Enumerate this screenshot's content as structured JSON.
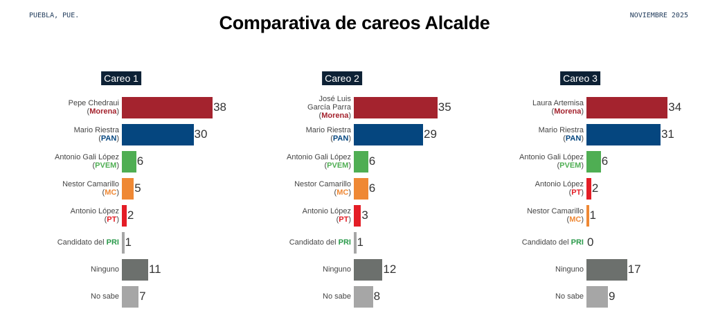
{
  "header": {
    "location": "PUEBLA, PUE.",
    "date": "NOVIEMBRE 2025",
    "title": "Comparativa de careos  Alcalde"
  },
  "party_colors": {
    "Morena": "#a4232e",
    "PAN": "#05467f",
    "PVEM": "#4fae53",
    "MC": "#ef8834",
    "PT": "#e41d26",
    "PRI": "#2a9a4a",
    "none": "#6c706d",
    "unknown": "#a6a6a6"
  },
  "chart_data": [
    {
      "type": "bar",
      "orientation": "horizontal",
      "title": "Careo 1",
      "unit": "%",
      "rows": [
        {
          "name": "Pepe Chedraui",
          "party": "Morena",
          "value": 38
        },
        {
          "name": "Mario Riestra",
          "party": "PAN",
          "value": 30
        },
        {
          "name": "Antonio Gali López",
          "party": "PVEM",
          "value": 6
        },
        {
          "name": "Nestor Camarillo",
          "party": "MC",
          "value": 5
        },
        {
          "name": "Antonio López",
          "party": "PT",
          "value": 2
        },
        {
          "name": "Candidato del",
          "party": "PRI",
          "value": 1,
          "inline": true
        },
        {
          "name": "Ninguno",
          "party": "none",
          "value": 11
        },
        {
          "name": "No sabe",
          "party": "unknown",
          "value": 7
        }
      ]
    },
    {
      "type": "bar",
      "orientation": "horizontal",
      "title": "Careo 2",
      "unit": "%",
      "rows": [
        {
          "name": "José Luis\nGarcía Parra",
          "party": "Morena",
          "value": 35
        },
        {
          "name": "Mario Riestra",
          "party": "PAN",
          "value": 29
        },
        {
          "name": "Antonio Gali López",
          "party": "PVEM",
          "value": 6
        },
        {
          "name": "Nestor Camarillo",
          "party": "MC",
          "value": 6
        },
        {
          "name": "Antonio López",
          "party": "PT",
          "value": 3
        },
        {
          "name": "Candidato del",
          "party": "PRI",
          "value": 1,
          "inline": true
        },
        {
          "name": "Ninguno",
          "party": "none",
          "value": 12
        },
        {
          "name": "No sabe",
          "party": "unknown",
          "value": 8
        }
      ]
    },
    {
      "type": "bar",
      "orientation": "horizontal",
      "title": "Careo 3",
      "unit": "%",
      "rows": [
        {
          "name": "Laura Artemisa",
          "party": "Morena",
          "value": 34
        },
        {
          "name": "Mario Riestra",
          "party": "PAN",
          "value": 31
        },
        {
          "name": "Antonio Gali López",
          "party": "PVEM",
          "value": 6
        },
        {
          "name": "Antonio López",
          "party": "PT",
          "value": 2
        },
        {
          "name": "Nestor Camarillo",
          "party": "MC",
          "value": 1
        },
        {
          "name": "Candidato del",
          "party": "PRI",
          "value": 0,
          "inline": true
        },
        {
          "name": "Ninguno",
          "party": "none",
          "value": 17
        },
        {
          "name": "No sabe",
          "party": "unknown",
          "value": 9
        }
      ]
    }
  ]
}
